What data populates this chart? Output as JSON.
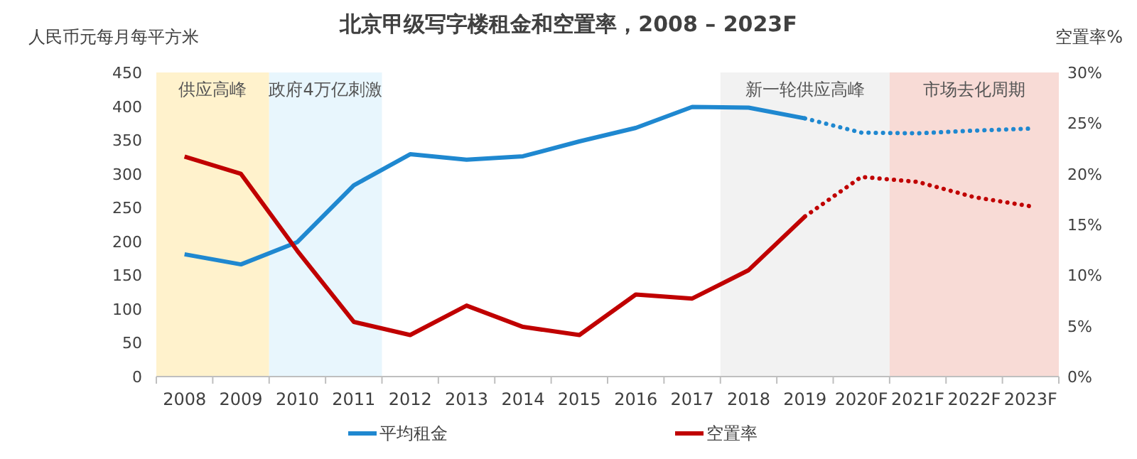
{
  "chart_data": {
    "type": "line",
    "title": "北京甲级写字楼租金和空置率，2008 – 2023F",
    "ylabel": "人民币元每月每平方米",
    "y2label": "空置率%",
    "categories": [
      "2008",
      "2009",
      "2010",
      "2011",
      "2012",
      "2013",
      "2014",
      "2015",
      "2016",
      "2017",
      "2018",
      "2019",
      "2020F",
      "2021F",
      "2022F",
      "2023F"
    ],
    "series": [
      {
        "name": "平均租金",
        "color": "#1f88d0",
        "line_style": "solid",
        "values": [
          181,
          166,
          199,
          283,
          329,
          321,
          326,
          348,
          368,
          399,
          398,
          382,
          null,
          null,
          null,
          null
        ]
      },
      {
        "color": "#1f88d0",
        "line_style": "dotted",
        "values": [
          null,
          null,
          null,
          null,
          null,
          null,
          null,
          null,
          null,
          null,
          null,
          382,
          361,
          360,
          364,
          367
        ]
      },
      {
        "name": "空置率",
        "color": "#c00000",
        "axis": "y2",
        "line_style": "solid",
        "values": [
          21.7,
          20.0,
          12.4,
          5.4,
          4.1,
          7.0,
          4.9,
          4.1,
          8.1,
          7.7,
          10.5,
          15.8,
          null,
          null,
          null,
          null
        ]
      },
      {
        "color": "#c00000",
        "axis": "y2",
        "line_style": "dotted",
        "values": [
          null,
          null,
          null,
          null,
          null,
          null,
          null,
          null,
          null,
          null,
          null,
          15.8,
          19.7,
          19.2,
          17.7,
          16.8
        ]
      }
    ],
    "ylim": [
      0,
      450
    ],
    "yticks": [
      0,
      50,
      100,
      150,
      200,
      250,
      300,
      350,
      400,
      450
    ],
    "y2lim": [
      0,
      30
    ],
    "y2ticks": [
      {
        "value": 0,
        "label": "0%"
      },
      {
        "value": 5,
        "label": "5%"
      },
      {
        "value": 10,
        "label": "10%"
      },
      {
        "value": 15,
        "label": "15%"
      },
      {
        "value": 20,
        "label": "20%"
      },
      {
        "value": 25,
        "label": "25%"
      },
      {
        "value": 30,
        "label": "30%"
      }
    ],
    "bands": [
      {
        "axis": "x",
        "from": "2008",
        "to": "2009",
        "label": "供应高峰",
        "color": "#fff2cc"
      },
      {
        "axis": "x",
        "from": "2010",
        "to": "2011",
        "label": "政府4万亿刺激",
        "color": "#e8f6fd"
      },
      {
        "axis": "x",
        "from": "2018",
        "to": "2020F",
        "label": "新一轮供应高峰",
        "color": "#f2f2f2"
      },
      {
        "axis": "x",
        "from": "2021F",
        "to": "2023F",
        "label": "市场去化周期",
        "color": "#f8dbd6"
      }
    ],
    "legend": "bottom",
    "grid": false,
    "marker": "none"
  }
}
